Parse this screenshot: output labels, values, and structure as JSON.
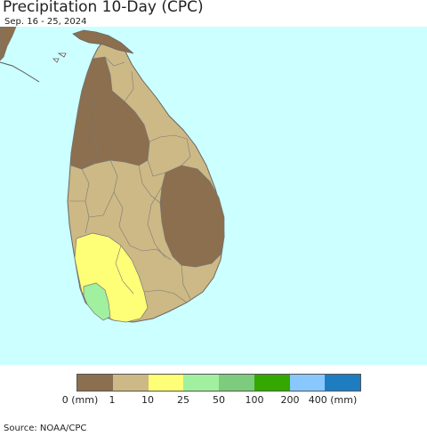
{
  "header": {
    "title": "Precipitation 10-Day (CPC)",
    "subtitle": "Sep. 16 - 25, 2024"
  },
  "map": {
    "ocean_color": "#ccffff",
    "land_color": "#ffffff",
    "boundary_color": "#777777"
  },
  "legend": {
    "colors": [
      "#8b6f4e",
      "#cdb985",
      "#ffff77",
      "#a0f0a0",
      "#7dcc7d",
      "#33a800",
      "#88c8ff",
      "#1e7dc0"
    ],
    "labels": [
      "0 (mm)",
      "1",
      "10",
      "25",
      "50",
      "100",
      "200",
      "400 (mm)"
    ]
  },
  "footer": {
    "source": "Source: NOAA/CPC"
  }
}
